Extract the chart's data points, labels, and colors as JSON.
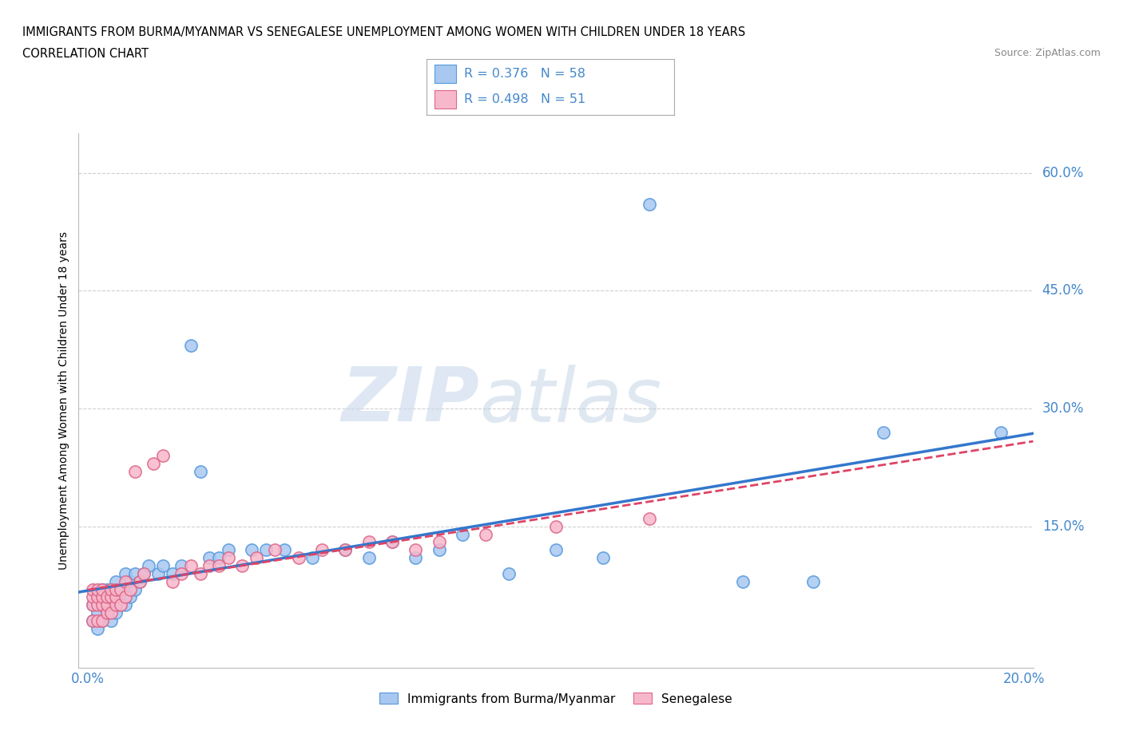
{
  "title_line1": "IMMIGRANTS FROM BURMA/MYANMAR VS SENEGALESE UNEMPLOYMENT AMONG WOMEN WITH CHILDREN UNDER 18 YEARS",
  "title_line2": "CORRELATION CHART",
  "source_text": "Source: ZipAtlas.com",
  "ylabel": "Unemployment Among Women with Children Under 18 years",
  "xlim": [
    -0.002,
    0.202
  ],
  "ylim": [
    -0.03,
    0.65
  ],
  "xticks": [
    0.0,
    0.05,
    0.1,
    0.15,
    0.2
  ],
  "yticks_right": [
    0.15,
    0.3,
    0.45,
    0.6
  ],
  "ytick_right_labels": [
    "15.0%",
    "30.0%",
    "45.0%",
    "60.0%"
  ],
  "grid_color": "#d0d0d0",
  "background_color": "#ffffff",
  "blue_scatter_color": "#a8c8f0",
  "blue_scatter_edge": "#5599dd",
  "pink_scatter_color": "#f8b8cc",
  "pink_scatter_edge": "#dd6688",
  "blue_line_color": "#3377cc",
  "pink_line_color": "#dd4466",
  "watermark_color": "#d0dff0",
  "legend_r1": "R = 0.376",
  "legend_n1": "N = 58",
  "legend_r2": "R = 0.498",
  "legend_n2": "N = 51",
  "legend_label1": "Immigrants from Burma/Myanmar",
  "legend_label2": "Senegalese",
  "blue_scatter_x": [
    0.001,
    0.001,
    0.002,
    0.002,
    0.002,
    0.003,
    0.003,
    0.003,
    0.003,
    0.004,
    0.004,
    0.004,
    0.005,
    0.005,
    0.005,
    0.005,
    0.006,
    0.006,
    0.006,
    0.007,
    0.007,
    0.008,
    0.008,
    0.008,
    0.009,
    0.009,
    0.01,
    0.01,
    0.011,
    0.012,
    0.013,
    0.015,
    0.016,
    0.018,
    0.02,
    0.022,
    0.024,
    0.026,
    0.028,
    0.03,
    0.035,
    0.038,
    0.042,
    0.048,
    0.055,
    0.06,
    0.065,
    0.07,
    0.075,
    0.08,
    0.09,
    0.1,
    0.11,
    0.12,
    0.14,
    0.155,
    0.17,
    0.195
  ],
  "blue_scatter_y": [
    0.03,
    0.05,
    0.02,
    0.04,
    0.06,
    0.03,
    0.05,
    0.06,
    0.07,
    0.04,
    0.06,
    0.07,
    0.03,
    0.05,
    0.06,
    0.07,
    0.04,
    0.06,
    0.08,
    0.05,
    0.07,
    0.05,
    0.07,
    0.09,
    0.06,
    0.08,
    0.07,
    0.09,
    0.08,
    0.09,
    0.1,
    0.09,
    0.1,
    0.09,
    0.1,
    0.38,
    0.22,
    0.11,
    0.11,
    0.12,
    0.12,
    0.12,
    0.12,
    0.11,
    0.12,
    0.11,
    0.13,
    0.11,
    0.12,
    0.14,
    0.09,
    0.12,
    0.11,
    0.56,
    0.08,
    0.08,
    0.27,
    0.27
  ],
  "pink_scatter_x": [
    0.001,
    0.001,
    0.001,
    0.001,
    0.002,
    0.002,
    0.002,
    0.002,
    0.003,
    0.003,
    0.003,
    0.003,
    0.004,
    0.004,
    0.004,
    0.005,
    0.005,
    0.005,
    0.006,
    0.006,
    0.006,
    0.007,
    0.007,
    0.008,
    0.008,
    0.009,
    0.01,
    0.011,
    0.012,
    0.014,
    0.016,
    0.018,
    0.02,
    0.022,
    0.024,
    0.026,
    0.028,
    0.03,
    0.033,
    0.036,
    0.04,
    0.045,
    0.05,
    0.055,
    0.06,
    0.065,
    0.07,
    0.075,
    0.085,
    0.1,
    0.12
  ],
  "pink_scatter_y": [
    0.03,
    0.05,
    0.06,
    0.07,
    0.03,
    0.05,
    0.06,
    0.07,
    0.03,
    0.05,
    0.06,
    0.07,
    0.04,
    0.05,
    0.06,
    0.04,
    0.06,
    0.07,
    0.05,
    0.06,
    0.07,
    0.05,
    0.07,
    0.06,
    0.08,
    0.07,
    0.22,
    0.08,
    0.09,
    0.23,
    0.24,
    0.08,
    0.09,
    0.1,
    0.09,
    0.1,
    0.1,
    0.11,
    0.1,
    0.11,
    0.12,
    0.11,
    0.12,
    0.12,
    0.13,
    0.13,
    0.12,
    0.13,
    0.14,
    0.15,
    0.16
  ]
}
